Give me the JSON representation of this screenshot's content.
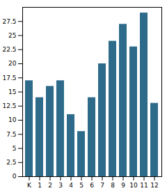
{
  "chart_data": {
    "type": "bar",
    "categories": [
      "K",
      "1",
      "2",
      "3",
      "4",
      "5",
      "6",
      "7",
      "8",
      "9",
      "10",
      "11",
      "12"
    ],
    "values": [
      17,
      14,
      16,
      17,
      11,
      8,
      14,
      20,
      24,
      27,
      23,
      29,
      13
    ],
    "color": "#2e6b8a",
    "ylim": [
      0,
      30
    ],
    "yticks": [
      0,
      2.5,
      5,
      7.5,
      10,
      12.5,
      15,
      17.5,
      20,
      22.5,
      25,
      27.5
    ],
    "grid": false
  }
}
